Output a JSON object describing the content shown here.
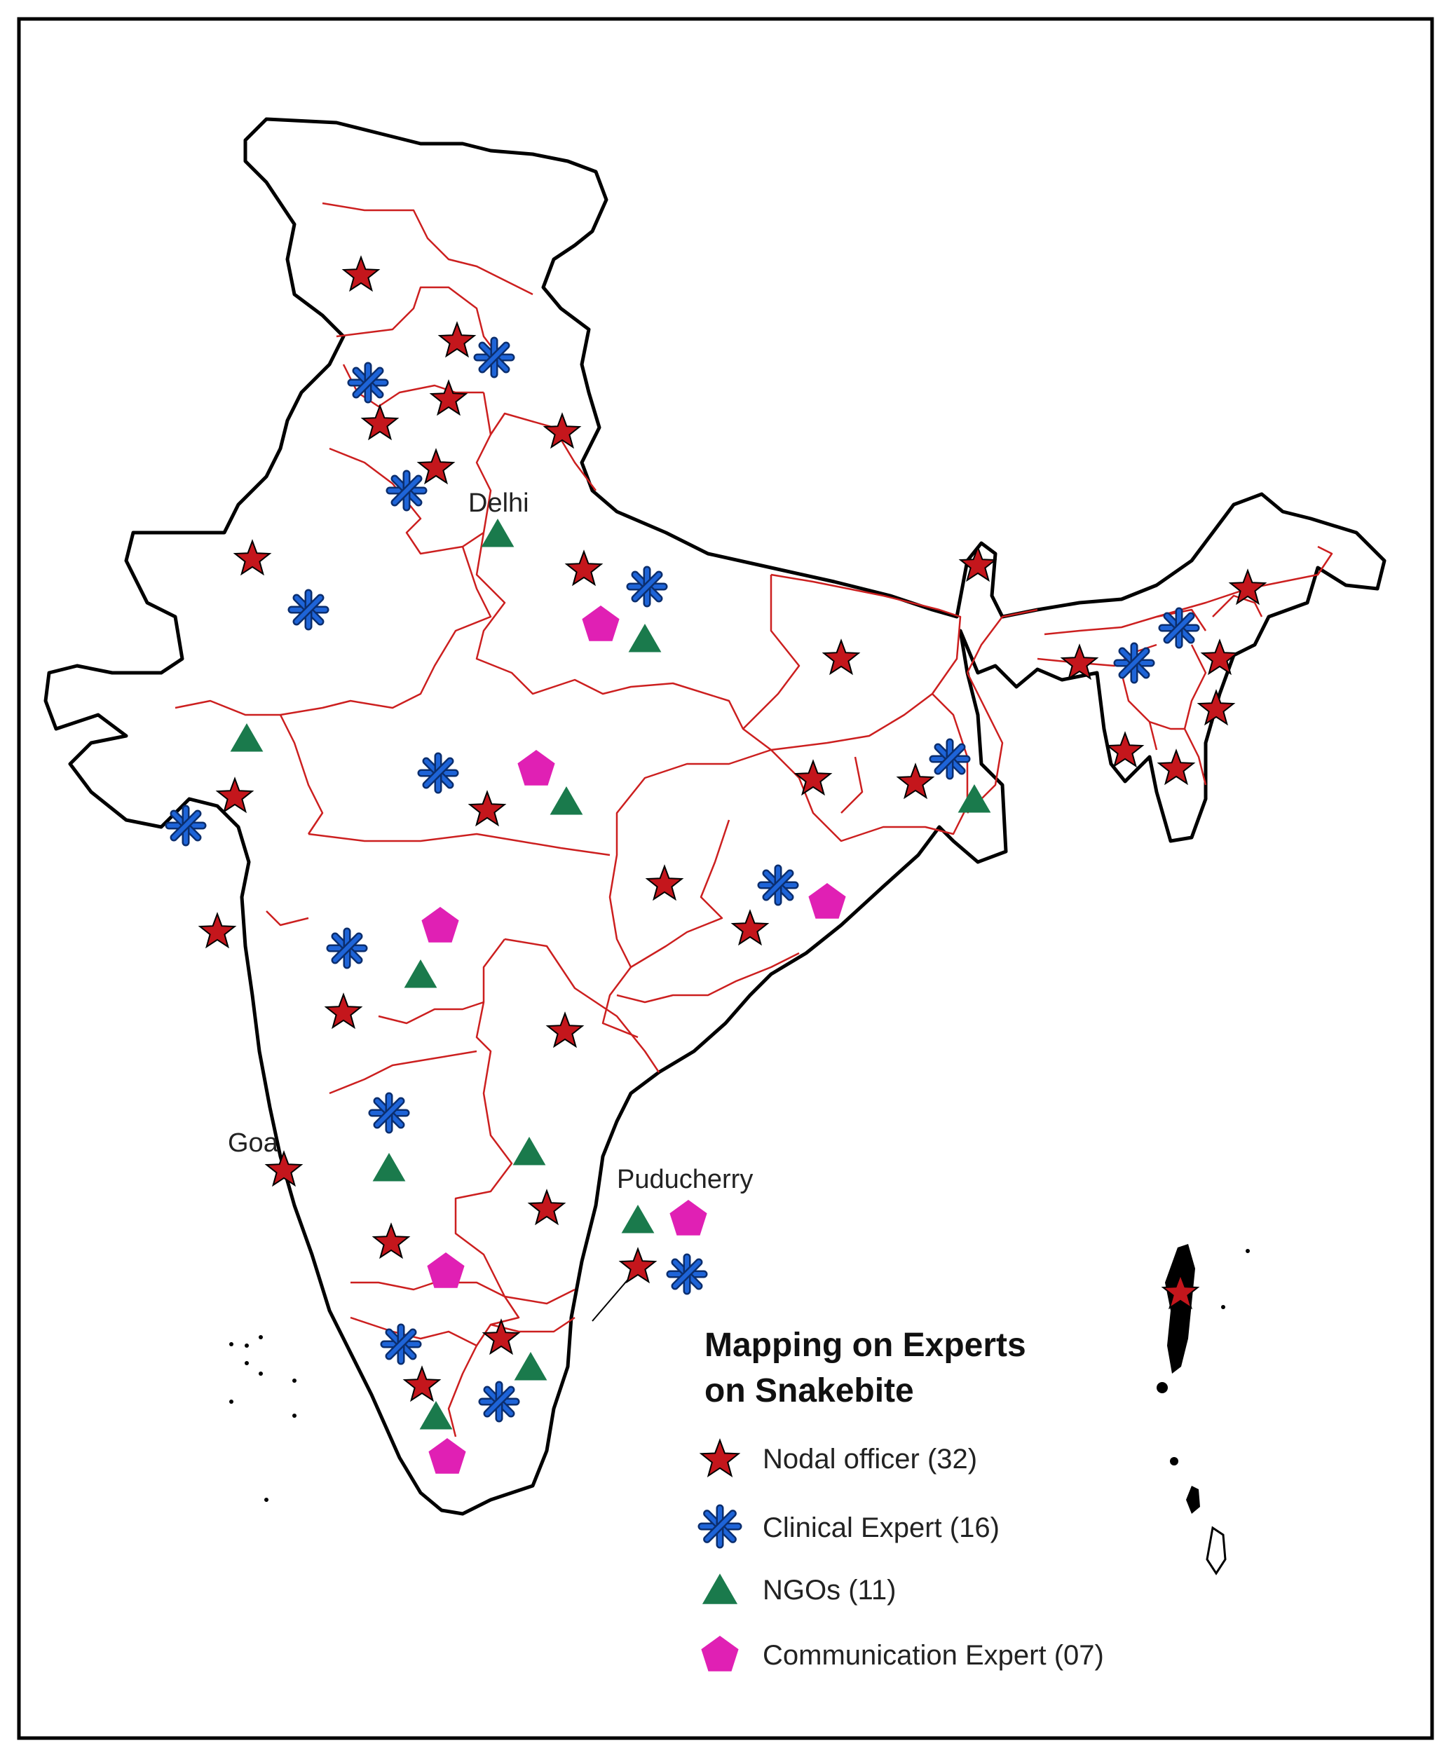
{
  "colors": {
    "outline": "#000000",
    "state_border": "#cc1f1f",
    "nodal": "#c4161c",
    "clinical": "#1e64d8",
    "ngo": "#1a7a4c",
    "communication": "#e020b4"
  },
  "labels": {
    "delhi": "Delhi",
    "goa": "Goa",
    "puducherry": "Puducherry"
  },
  "legend": {
    "title_line1": "Mapping on Experts",
    "title_line2": "on Snakebite",
    "items": [
      {
        "icon": "red-star-icon",
        "label": "Nodal officer (32)"
      },
      {
        "icon": "blue-asterisk-icon",
        "label": "Clinical Expert (16)"
      },
      {
        "icon": "green-triangle-icon",
        "label": "NGOs (11)"
      },
      {
        "icon": "magenta-pentagon-icon",
        "label": "Communication Expert (07)"
      }
    ]
  }
}
